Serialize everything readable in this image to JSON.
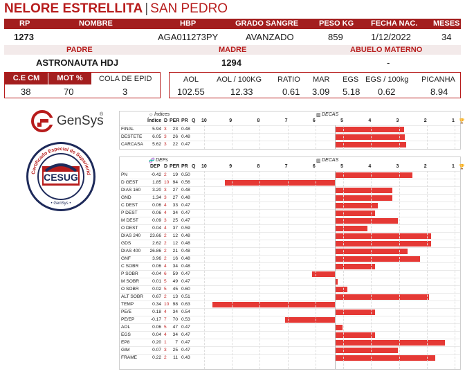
{
  "header": {
    "name": "NELORE ESTRELLITA",
    "separator": "|",
    "place": "SAN PEDRO"
  },
  "row1": {
    "labels": {
      "rp": "RP",
      "nombre": "NOMBRE",
      "hbp": "HBP",
      "grado": "GRADO SANGRE",
      "peso": "PESO KG",
      "fecha": "FECHA NAC.",
      "meses": "MESES"
    },
    "values": {
      "rp": "1273",
      "nombre": "",
      "hbp": "AGA011273PY",
      "grado": "AVANZADO",
      "peso": "859",
      "fecha": "1/12/2022",
      "meses": "34"
    }
  },
  "row2": {
    "labels": {
      "padre": "PADRE",
      "madre": "MADRE",
      "abuelo": "ABUELO MATERNO"
    },
    "values": {
      "padre": "ASTRONAUTA HDJ",
      "madre": "1294",
      "abuelo": "-"
    }
  },
  "box1": {
    "labels": {
      "ce": "C.E CM",
      "mot": "MOT %",
      "cola": "COLA DE EPID"
    },
    "values": {
      "ce": "38",
      "mot": "70",
      "cola": "3"
    }
  },
  "box2": {
    "labels": {
      "aol": "AOL",
      "aol100": "AOL / 100KG",
      "ratio": "RATIO",
      "mar": "MAR",
      "egs": "EGS",
      "egs100": "EGS / 100kg",
      "picanha": "PICANHA"
    },
    "values": {
      "aol": "102.55",
      "aol100": "12.33",
      "ratio": "0.61",
      "mar": "3.09",
      "egs": "5.18",
      "egs100": "0.62",
      "picanha": "8.94"
    }
  },
  "logos": {
    "gensys": "GenSys",
    "gensys_mark": "®",
    "cesug": "CESUG",
    "cesug_ring": "Certificado Especial de Superioridad Genética",
    "cesug_bottom": "• GenSys •"
  },
  "colors": {
    "brand_red": "#a31e1e",
    "bar_red": "#e53935"
  },
  "indices_table": {
    "title": "Índices",
    "decas_title": "DECAS",
    "columns": [
      "Índice",
      "D",
      "PER",
      "PR",
      "Q"
    ],
    "decas_ticks": [
      "10",
      "9",
      "8",
      "7",
      "6",
      "5",
      "4",
      "3",
      "2",
      "1"
    ],
    "trophy_icon": "trophy-icon",
    "rows": [
      {
        "name": "FINAL",
        "value": "5.94",
        "d": "3",
        "per": "23",
        "pr": "0.48",
        "bar": 0.55
      },
      {
        "name": "DESTETE",
        "value": "6.05",
        "d": "3",
        "per": "26",
        "pr": "0.48",
        "bar": 0.56
      },
      {
        "name": "CARCASA",
        "value": "5.62",
        "d": "3",
        "per": "22",
        "pr": "0.47",
        "bar": 0.57
      }
    ]
  },
  "deps_table": {
    "title": "DEPs",
    "decas_title": "DECAS",
    "columns": [
      "DEP",
      "D",
      "PER",
      "PR",
      "Q"
    ],
    "decas_ticks": [
      "10",
      "9",
      "8",
      "7",
      "6",
      "5",
      "4",
      "3",
      "2",
      "1"
    ],
    "trophy_icon": "trophy-icon",
    "rows": [
      {
        "name": "PN",
        "value": "-0.42",
        "d": "2",
        "per": "19",
        "pr": "0.50",
        "bar": 0.62
      },
      {
        "name": "D GEST",
        "value": "1.85",
        "d": "10",
        "per": "94",
        "pr": "0.56",
        "bar": -0.88
      },
      {
        "name": "DIAS 160",
        "value": "3.20",
        "d": "3",
        "per": "27",
        "pr": "0.48",
        "bar": 0.46
      },
      {
        "name": "GND",
        "value": "1.34",
        "d": "3",
        "per": "27",
        "pr": "0.48",
        "bar": 0.46
      },
      {
        "name": "C DEST",
        "value": "0.06",
        "d": "4",
        "per": "33",
        "pr": "0.47",
        "bar": 0.34
      },
      {
        "name": "P DEST",
        "value": "0.06",
        "d": "4",
        "per": "34",
        "pr": "0.47",
        "bar": 0.32
      },
      {
        "name": "M DEST",
        "value": "0.09",
        "d": "3",
        "per": "25",
        "pr": "0.47",
        "bar": 0.5
      },
      {
        "name": "O DEST",
        "value": "0.04",
        "d": "4",
        "per": "37",
        "pr": "0.59",
        "bar": 0.26
      },
      {
        "name": "DIAS 240",
        "value": "23.66",
        "d": "2",
        "per": "12",
        "pr": "0.48",
        "bar": 0.77
      },
      {
        "name": "GDS",
        "value": "2.62",
        "d": "2",
        "per": "12",
        "pr": "0.48",
        "bar": 0.77
      },
      {
        "name": "DIAS 400",
        "value": "26.86",
        "d": "2",
        "per": "21",
        "pr": "0.48",
        "bar": 0.58
      },
      {
        "name": "GNF",
        "value": "3.96",
        "d": "2",
        "per": "16",
        "pr": "0.48",
        "bar": 0.68
      },
      {
        "name": "C SOBR",
        "value": "0.06",
        "d": "4",
        "per": "34",
        "pr": "0.48",
        "bar": 0.32
      },
      {
        "name": "P SOBR",
        "value": "-0.04",
        "d": "6",
        "per": "59",
        "pr": "0.47",
        "bar": -0.18
      },
      {
        "name": "M SOBR",
        "value": "0.01",
        "d": "5",
        "per": "49",
        "pr": "0.47",
        "bar": 0.02
      },
      {
        "name": "O SOBR",
        "value": "0.02",
        "d": "5",
        "per": "45",
        "pr": "0.60",
        "bar": 0.1
      },
      {
        "name": "ALT SOBR",
        "value": "0.67",
        "d": "2",
        "per": "13",
        "pr": "0.51",
        "bar": 0.75
      },
      {
        "name": "TEMP",
        "value": "0.34",
        "d": "10",
        "per": "98",
        "pr": "0.63",
        "bar": -0.98
      },
      {
        "name": "PE/E",
        "value": "0.18",
        "d": "4",
        "per": "34",
        "pr": "0.54",
        "bar": 0.32
      },
      {
        "name": "PE/EP",
        "value": "-0.17",
        "d": "7",
        "per": "70",
        "pr": "0.53",
        "bar": -0.4
      },
      {
        "name": "AOL",
        "value": "0.06",
        "d": "5",
        "per": "47",
        "pr": "0.47",
        "bar": 0.06
      },
      {
        "name": "EGS",
        "value": "0.04",
        "d": "4",
        "per": "34",
        "pr": "0.47",
        "bar": 0.32
      },
      {
        "name": "EP8",
        "value": "0.20",
        "d": "1",
        "per": "7",
        "pr": "0.47",
        "bar": 0.88
      },
      {
        "name": "GIM",
        "value": "0.07",
        "d": "3",
        "per": "25",
        "pr": "0.47",
        "bar": 0.5
      },
      {
        "name": "FRAME",
        "value": "0.22",
        "d": "2",
        "per": "11",
        "pr": "0.43",
        "bar": 0.8
      }
    ]
  }
}
